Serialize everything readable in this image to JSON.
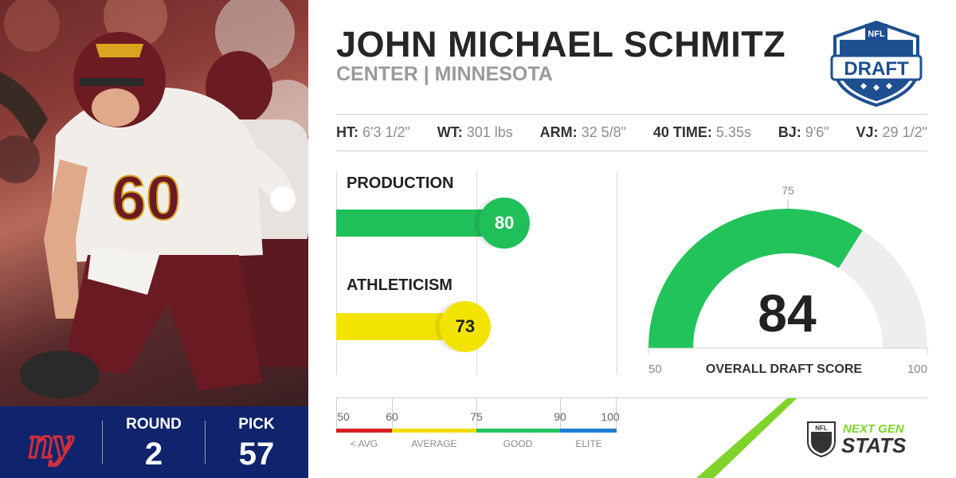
{
  "player": {
    "name": "JOHN MICHAEL SCHMITZ",
    "subtitle": "CENTER | MINNESOTA",
    "jersey_number": "60"
  },
  "draft_logo": {
    "top_text": "NFL",
    "main_text": "DRAFT"
  },
  "measurables": [
    {
      "key": "HT:",
      "value": "6'3 1/2\""
    },
    {
      "key": "WT:",
      "value": "301 lbs"
    },
    {
      "key": "ARM:",
      "value": "32 5/8\""
    },
    {
      "key": "40 TIME:",
      "value": "5.35s"
    },
    {
      "key": "BJ:",
      "value": "9'6\""
    },
    {
      "key": "VJ:",
      "value": "29 1/2\""
    }
  ],
  "scores": [
    {
      "label": "PRODUCTION",
      "value": 80,
      "color": "#1fbf5a"
    },
    {
      "label": "ATHLETICISM",
      "value": 73,
      "color": "#f2e400"
    }
  ],
  "overall": {
    "label": "OVERALL DRAFT SCORE",
    "value": 84,
    "min": 50,
    "max": 100,
    "marker": 75,
    "min_label": "50",
    "max_label": "100",
    "marker_label": "75",
    "fill_color": "#22c35a",
    "track_color": "#eeeeee"
  },
  "scale": {
    "ticks": [
      "50",
      "60",
      "75",
      "90",
      "100"
    ],
    "bands": [
      {
        "label": "< AVG",
        "color": "#d81e1e"
      },
      {
        "label": "AVERAGE",
        "color": "#f2de00"
      },
      {
        "label": "GOOD",
        "color": "#22c35a"
      },
      {
        "label": "ELITE",
        "color": "#1f7fd1"
      }
    ]
  },
  "team": {
    "logo_text": "ny",
    "round_label": "ROUND",
    "round_value": "2",
    "pick_label": "PICK",
    "pick_value": "57",
    "color": "#10246d"
  },
  "branding": {
    "ngs_line1": "NEXT GEN",
    "ngs_line2": "STATS",
    "shield_text": "NFL",
    "accent": "#7fd32a"
  }
}
